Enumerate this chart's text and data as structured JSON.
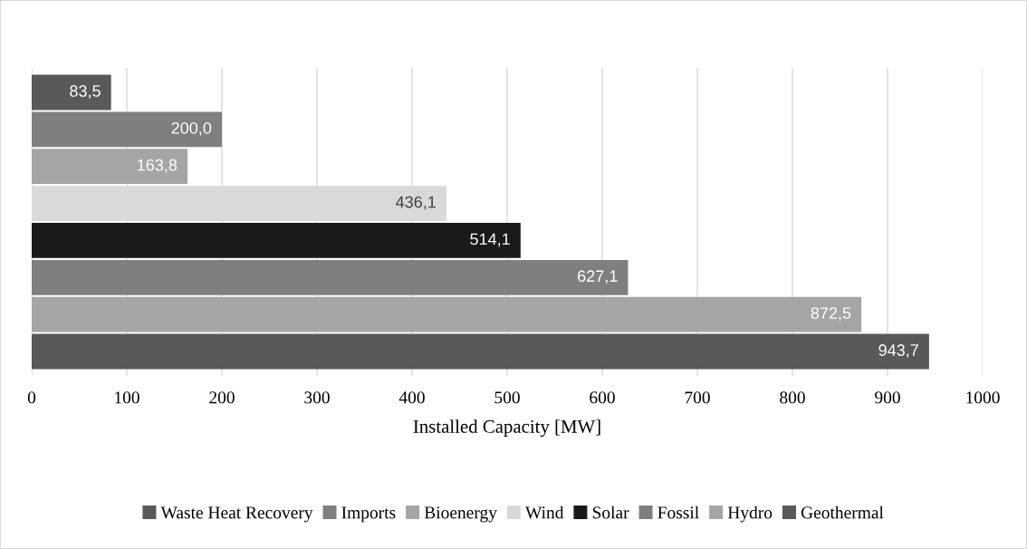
{
  "chart_data": {
    "type": "bar",
    "orientation": "horizontal",
    "xlabel": "Installed Capacity [MW]",
    "categories": [
      null
    ],
    "xlim": [
      0,
      1000
    ],
    "xticks": [
      0,
      100,
      200,
      300,
      400,
      500,
      600,
      700,
      800,
      900,
      1000
    ],
    "grid": "x",
    "legend": "bottom",
    "series": [
      {
        "name": "Waste Heat Recovery",
        "color": "#595959",
        "values": [
          83.5
        ],
        "value_labels": [
          "83,5"
        ]
      },
      {
        "name": "Imports",
        "color": "#7f7f7f",
        "values": [
          200.0
        ],
        "value_labels": [
          "200,0"
        ]
      },
      {
        "name": "Bioenergy",
        "color": "#a5a5a5",
        "values": [
          163.8
        ],
        "value_labels": [
          "163,8"
        ]
      },
      {
        "name": "Wind",
        "color": "#d9d9d9",
        "values": [
          436.1
        ],
        "value_labels": [
          "436,1"
        ]
      },
      {
        "name": "Solar",
        "color": "#1a1a1a",
        "values": [
          514.1
        ],
        "value_labels": [
          "514,1"
        ]
      },
      {
        "name": "Fossil",
        "color": "#7f7f7f",
        "values": [
          627.1
        ],
        "value_labels": [
          "627,1"
        ]
      },
      {
        "name": "Hydro",
        "color": "#a5a5a5",
        "values": [
          872.5
        ],
        "value_labels": [
          "872,5"
        ]
      },
      {
        "name": "Geothermal",
        "color": "#595959",
        "values": [
          943.7
        ],
        "value_labels": [
          "943,7"
        ]
      }
    ]
  }
}
